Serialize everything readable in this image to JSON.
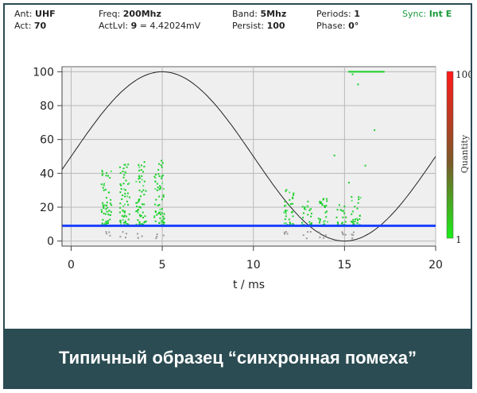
{
  "header": {
    "ant_label": "Ant:",
    "ant_value": "UHF",
    "act_label": "Act:",
    "act_value": "70",
    "freq_label": "Freq:",
    "freq_value": "200Mhz",
    "actlvl_label": "ActLvl:",
    "actlvl_value": "9",
    "actlvl_extra": "= 4.42024mV",
    "band_label": "Band:",
    "band_value": "5Mhz",
    "persist_label": "Persist:",
    "persist_value": "100",
    "periods_label": "Periods:",
    "periods_value": "1",
    "phase_label": "Phase:",
    "phase_value": "0°",
    "sync_label": "Sync:",
    "sync_value": "Int E"
  },
  "caption": "Типичный образец “синхронная помеха”",
  "colorbar": {
    "top_label": "100",
    "bottom_label": "1",
    "title": "Quantity",
    "top_color": "#ff1a1a",
    "bottom_color": "#1aee1a"
  },
  "chart_data": {
    "type": "scatter",
    "xlabel": "t / ms",
    "ylabel": "",
    "xlim": [
      -0.5,
      20
    ],
    "ylim": [
      -3,
      103
    ],
    "xticks": [
      0,
      5,
      10,
      15,
      20
    ],
    "yticks": [
      0,
      20,
      40,
      60,
      80,
      100
    ],
    "grid": true,
    "threshold_level": 9,
    "reference_sine": {
      "amplitude": 50,
      "offset": 50,
      "period_ms": 20,
      "peak_ms": 5
    },
    "pulse_clusters": [
      {
        "t": 1.9,
        "ymin": 10,
        "ymax": 45
      },
      {
        "t": 2.9,
        "ymin": 10,
        "ymax": 46
      },
      {
        "t": 3.8,
        "ymin": 10,
        "ymax": 48
      },
      {
        "t": 4.8,
        "ymin": 10,
        "ymax": 49
      },
      {
        "t": 11.9,
        "ymin": 10,
        "ymax": 31
      },
      {
        "t": 12.9,
        "ymin": 10,
        "ymax": 24
      },
      {
        "t": 13.8,
        "ymin": 10,
        "ymax": 26
      },
      {
        "t": 14.8,
        "ymin": 10,
        "ymax": 22
      },
      {
        "t": 15.6,
        "ymin": 10,
        "ymax": 27
      }
    ],
    "sparse_points": [
      {
        "t": 15.7,
        "y": 93
      },
      {
        "t": 16.1,
        "y": 45
      },
      {
        "t": 16.6,
        "y": 66
      },
      {
        "t": 14.4,
        "y": 51
      },
      {
        "t": 15.4,
        "y": 99
      },
      {
        "t": 15.2,
        "y": 35
      }
    ],
    "saturation_segments": [
      {
        "t0": 15.2,
        "t1": 17.2,
        "y": 100
      }
    ]
  }
}
